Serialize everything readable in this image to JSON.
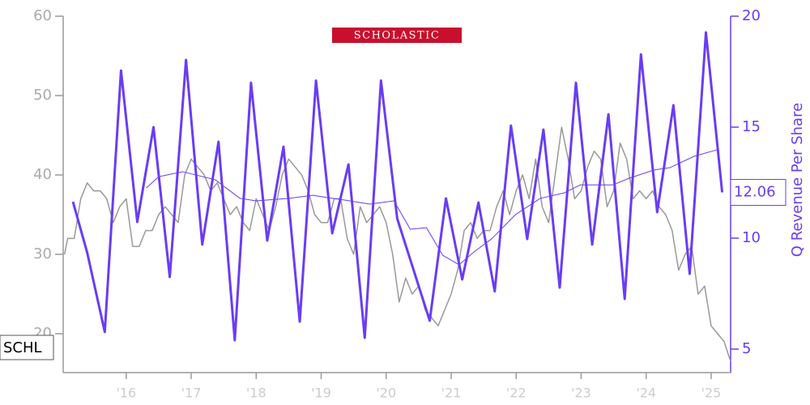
{
  "chart_data": {
    "type": "line",
    "title": "SCHOLASTIC",
    "ticker": "SCHL",
    "y2label": "Q Revenue Per Share",
    "xlim": [
      2015.03,
      2025.3
    ],
    "xticks": [
      {
        "value": 2016,
        "label": "'16"
      },
      {
        "value": 2017,
        "label": "'17"
      },
      {
        "value": 2018,
        "label": "'18"
      },
      {
        "value": 2019,
        "label": "'19"
      },
      {
        "value": 2020,
        "label": "'20"
      },
      {
        "value": 2021,
        "label": "'21"
      },
      {
        "value": 2022,
        "label": "'22"
      },
      {
        "value": 2023,
        "label": "'23"
      },
      {
        "value": 2024,
        "label": "'24"
      },
      {
        "value": 2025,
        "label": "'25"
      }
    ],
    "ylim": [
      15.1,
      60
    ],
    "yticks": [
      20,
      30,
      40,
      50,
      60
    ],
    "y2lim": [
      3.94,
      20
    ],
    "y2ticks": [
      5,
      10,
      15,
      20
    ],
    "series": [
      {
        "color": "#999999",
        "line_width": 1.5,
        "x": [
          2015.05,
          2015.1,
          2015.2,
          2015.3,
          2015.4,
          2015.5,
          2015.6,
          2015.7,
          2015.8,
          2015.9,
          2016.0,
          2016.1,
          2016.2,
          2016.3,
          2016.4,
          2016.5,
          2016.6,
          2016.7,
          2016.8,
          2016.9,
          2017.0,
          2017.1,
          2017.2,
          2017.3,
          2017.4,
          2017.5,
          2017.6,
          2017.7,
          2017.8,
          2017.9,
          2018.0,
          2018.1,
          2018.2,
          2018.3,
          2018.4,
          2018.5,
          2018.6,
          2018.7,
          2018.8,
          2018.9,
          2019.0,
          2019.1,
          2019.2,
          2019.3,
          2019.4,
          2019.5,
          2019.6,
          2019.7,
          2019.8,
          2019.9,
          2020.0,
          2020.1,
          2020.2,
          2020.3,
          2020.4,
          2020.5,
          2020.6,
          2020.7,
          2020.8,
          2020.9,
          2021.0,
          2021.1,
          2021.2,
          2021.3,
          2021.4,
          2021.5,
          2021.6,
          2021.7,
          2021.8,
          2021.9,
          2022.0,
          2022.1,
          2022.2,
          2022.3,
          2022.4,
          2022.5,
          2022.6,
          2022.7,
          2022.8,
          2022.9,
          2023.0,
          2023.1,
          2023.2,
          2023.3,
          2023.4,
          2023.5,
          2023.6,
          2023.7,
          2023.8,
          2023.9,
          2024.0,
          2024.1,
          2024.2,
          2024.3,
          2024.4,
          2024.5,
          2024.6,
          2024.7,
          2024.8,
          2024.9,
          2025.0,
          2025.1,
          2025.2,
          2025.3
        ],
        "values": [
          30,
          32,
          32,
          37,
          39,
          38,
          38,
          37,
          34,
          36,
          37,
          31,
          31,
          33,
          33,
          35,
          36,
          35,
          34,
          40,
          42,
          41,
          40,
          38,
          39,
          37,
          35,
          36,
          34,
          33,
          37,
          35,
          33,
          36,
          40,
          42,
          41,
          40,
          38,
          35,
          34,
          34,
          37,
          37,
          32,
          30,
          36,
          34,
          35,
          36,
          34,
          30,
          24,
          27,
          25,
          26,
          23,
          22,
          21,
          23,
          25,
          28,
          33,
          34,
          32,
          33,
          33,
          36,
          38,
          35,
          38,
          40,
          37,
          42,
          36,
          34,
          40,
          46,
          42,
          37,
          38,
          41,
          43,
          42,
          36,
          38,
          44,
          42,
          37,
          38,
          37,
          38,
          36,
          35,
          33,
          28,
          30,
          31,
          25,
          26,
          21,
          20,
          19,
          16.5
        ]
      },
      {
        "color": "#6a3cf5",
        "axis": "y2",
        "line_width": 3,
        "x": [
          2015.18,
          2015.4,
          2015.67,
          2015.92,
          2016.17,
          2016.42,
          2016.67,
          2016.92,
          2017.17,
          2017.42,
          2017.67,
          2017.92,
          2018.17,
          2018.42,
          2018.67,
          2018.92,
          2019.17,
          2019.42,
          2019.67,
          2019.92,
          2020.17,
          2020.67,
          2020.92,
          2021.17,
          2021.42,
          2021.67,
          2021.92,
          2022.17,
          2022.42,
          2022.67,
          2022.92,
          2023.17,
          2023.42,
          2023.67,
          2023.92,
          2024.17,
          2024.42,
          2024.67,
          2024.92,
          2025.17
        ],
        "values": [
          11.64,
          9.34,
          5.77,
          17.55,
          10.73,
          15.0,
          8.25,
          18.03,
          9.71,
          14.34,
          5.4,
          17.0,
          9.89,
          14.12,
          6.24,
          17.1,
          10.22,
          13.32,
          5.51,
          17.1,
          10.88,
          6.28,
          11.79,
          8.14,
          11.6,
          7.6,
          15.07,
          9.96,
          14.89,
          7.77,
          17.0,
          9.71,
          15.58,
          7.26,
          18.28,
          11.17,
          15.99,
          8.39,
          19.27,
          12.06
        ]
      },
      {
        "color": "#6a3cf5",
        "axis": "y2",
        "line_width": 1,
        "x": [
          2016.31,
          2016.5,
          2016.87,
          2017.37,
          2017.75,
          2018.0,
          2018.5,
          2018.87,
          2019.37,
          2019.75,
          2020.12,
          2020.37,
          2020.62,
          2020.87,
          2021.12,
          2021.37,
          2021.62,
          2021.99,
          2022.37,
          2022.74,
          2022.99,
          2023.49,
          2023.74,
          2024.12,
          2024.37,
          2024.74,
          2025.09
        ],
        "values": [
          12.26,
          12.77,
          12.99,
          12.63,
          11.79,
          11.68,
          11.79,
          11.93,
          11.71,
          11.53,
          11.68,
          10.4,
          10.47,
          9.23,
          8.8,
          9.42,
          9.96,
          11.06,
          11.79,
          12.04,
          12.4,
          12.4,
          12.7,
          13.07,
          13.18,
          13.69,
          13.98
        ]
      }
    ]
  }
}
